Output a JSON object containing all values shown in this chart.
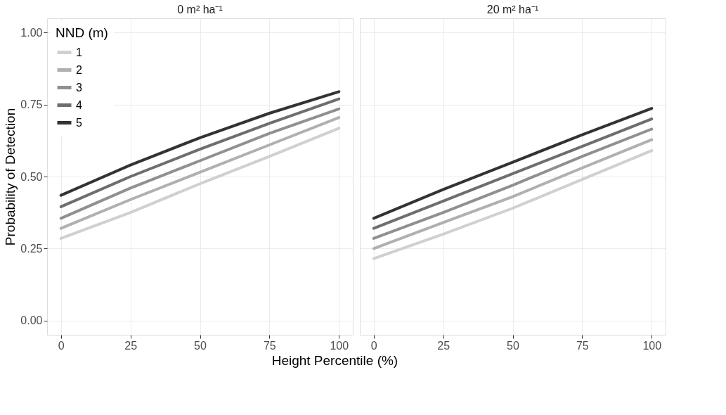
{
  "chart_data": [
    {
      "type": "line",
      "title": "0 m² ha⁻¹",
      "xlabel": "Height Percentile (%)",
      "ylabel": "Probability of Detection",
      "legend_title": "NND (m)",
      "legend": "top left",
      "grid": true,
      "x": [
        0,
        25,
        50,
        75,
        100
      ],
      "xlim": [
        -5,
        105
      ],
      "xticks": [
        0,
        25,
        50,
        75,
        100
      ],
      "ylim": [
        -0.05,
        1.05
      ],
      "yticks": [
        {
          "value": 0,
          "label": "0.00"
        },
        {
          "value": 0.25,
          "label": "0.25"
        },
        {
          "value": 0.5,
          "label": "0.50"
        },
        {
          "value": 0.75,
          "label": "0.75"
        },
        {
          "value": 1,
          "label": "1.00"
        }
      ],
      "series": [
        {
          "name": "1",
          "color": "#d0d0d0",
          "values": [
            0.285,
            0.375,
            0.475,
            0.57,
            0.668
          ]
        },
        {
          "name": "2",
          "color": "#b0b0b0",
          "values": [
            0.32,
            0.42,
            0.515,
            0.61,
            0.705
          ]
        },
        {
          "name": "3",
          "color": "#909090",
          "values": [
            0.355,
            0.46,
            0.555,
            0.65,
            0.735
          ]
        },
        {
          "name": "4",
          "color": "#6e6e6e",
          "values": [
            0.395,
            0.5,
            0.595,
            0.685,
            0.77
          ]
        },
        {
          "name": "5",
          "color": "#333333",
          "values": [
            0.435,
            0.54,
            0.635,
            0.72,
            0.795
          ]
        }
      ]
    },
    {
      "type": "line",
      "title": "20 m² ha⁻¹",
      "grid": true,
      "tick_labels": "x",
      "x": [
        0,
        25,
        50,
        75,
        100
      ],
      "xlim": [
        -5,
        105
      ],
      "xticks": [
        0,
        25,
        50,
        75,
        100
      ],
      "ylim": [
        -0.05,
        1.05
      ],
      "yticks": [
        0,
        0.25,
        0.5,
        0.75,
        1
      ],
      "series": [
        {
          "color": "#d0d0d0",
          "values": [
            0.215,
            0.3,
            0.39,
            0.49,
            0.59
          ]
        },
        {
          "color": "#b0b0b0",
          "values": [
            0.25,
            0.34,
            0.43,
            0.53,
            0.628
          ]
        },
        {
          "color": "#909090",
          "values": [
            0.285,
            0.375,
            0.47,
            0.57,
            0.665
          ]
        },
        {
          "color": "#6e6e6e",
          "values": [
            0.32,
            0.415,
            0.51,
            0.605,
            0.7
          ]
        },
        {
          "color": "#333333",
          "values": [
            0.355,
            0.455,
            0.55,
            0.645,
            0.737
          ]
        }
      ]
    }
  ]
}
